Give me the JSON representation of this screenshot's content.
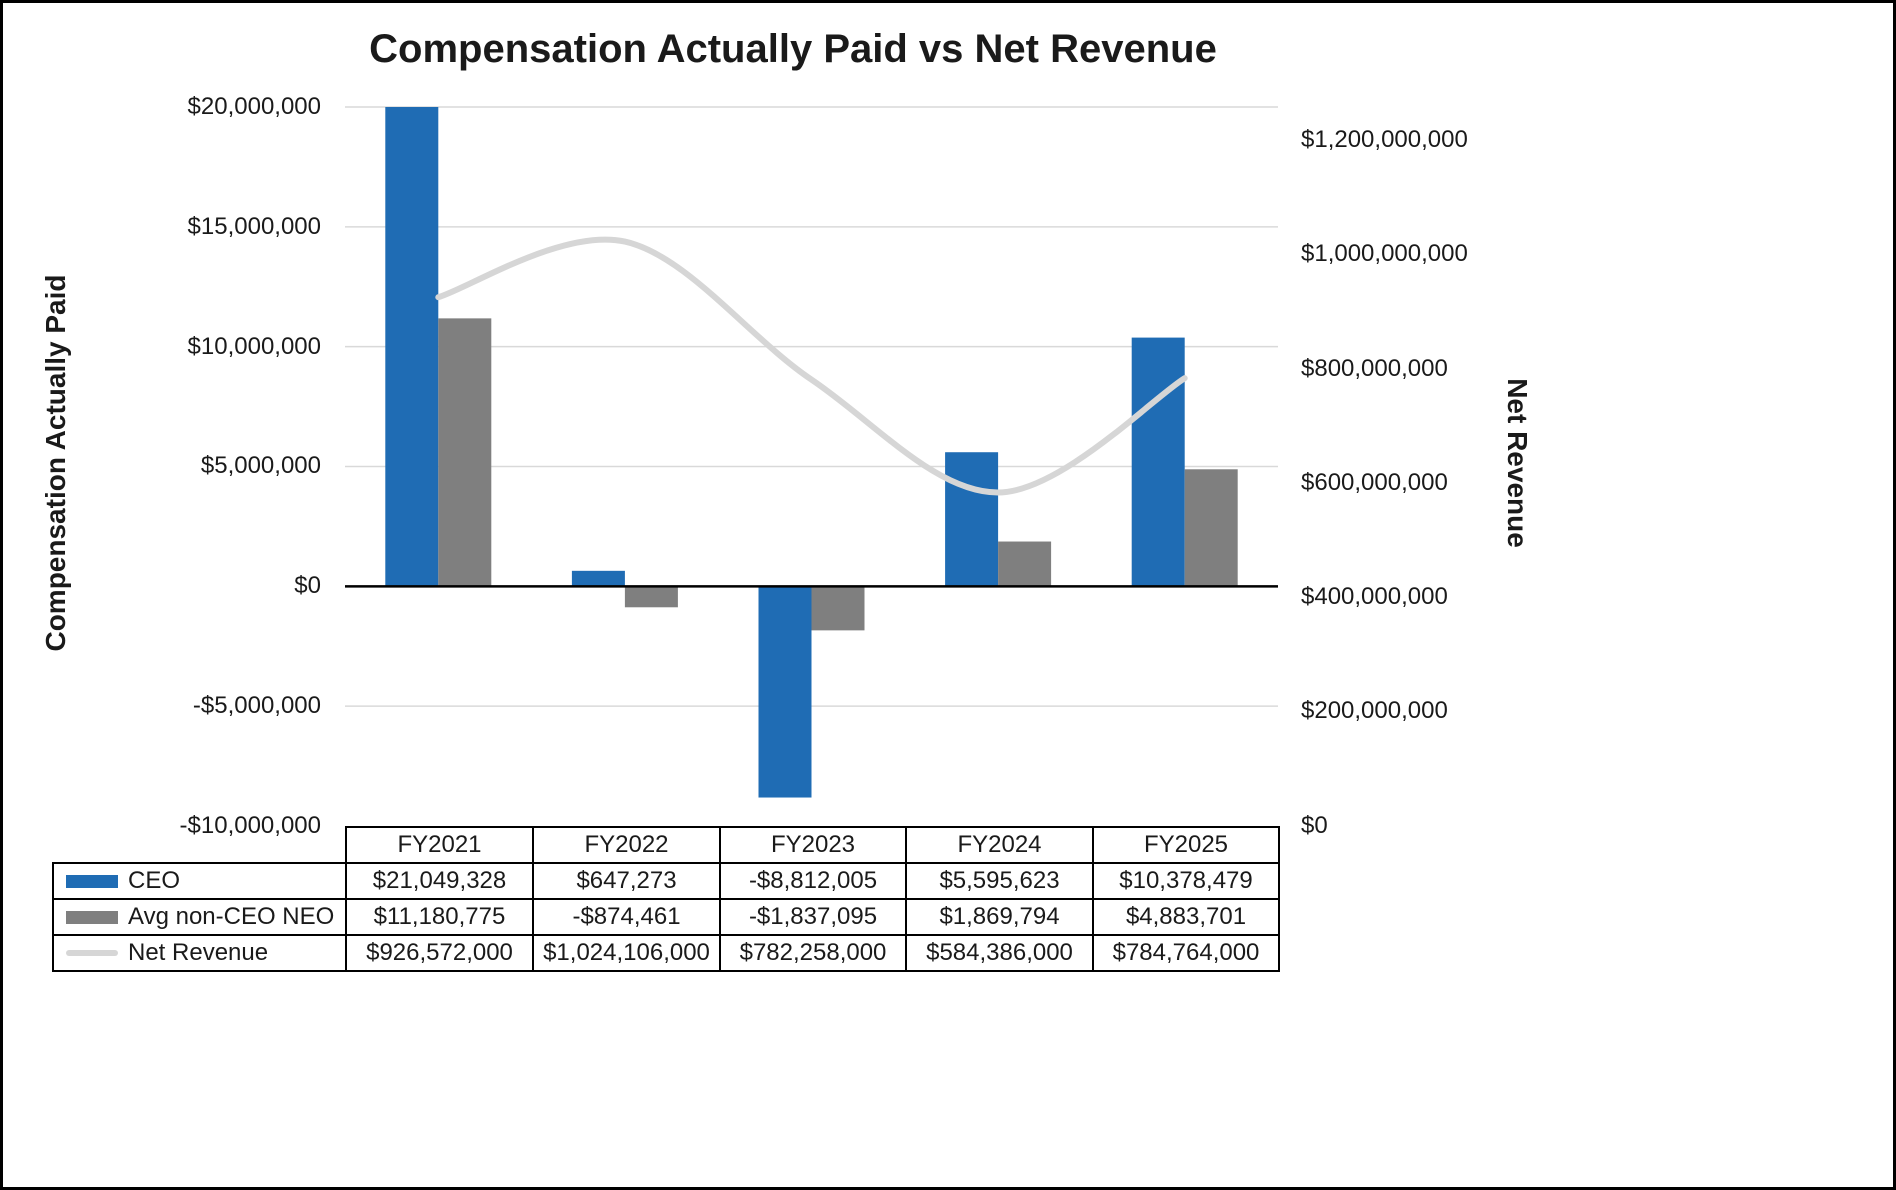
{
  "title": "Compensation Actually Paid vs Net Revenue",
  "left_axis": {
    "title": "Compensation Actually Paid",
    "ticks": [
      "$20,000,000",
      "$15,000,000",
      "$10,000,000",
      "$5,000,000",
      "$0",
      "-$5,000,000",
      "-$10,000,000"
    ]
  },
  "right_axis": {
    "title": "Net Revenue",
    "ticks": [
      "$1,200,000,000",
      "$1,000,000,000",
      "$800,000,000",
      "$600,000,000",
      "$400,000,000",
      "$200,000,000",
      "$0"
    ]
  },
  "table": {
    "columns": [
      "FY2021",
      "FY2022",
      "FY2023",
      "FY2024",
      "FY2025"
    ],
    "rows": [
      {
        "label": "CEO",
        "cells": [
          "$21,049,328",
          "$647,273",
          "-$8,812,005",
          "$5,595,623",
          "$10,378,479"
        ]
      },
      {
        "label": "Avg non-CEO NEO",
        "cells": [
          "$11,180,775",
          "-$874,461",
          "-$1,837,095",
          "$1,869,794",
          "$4,883,701"
        ]
      },
      {
        "label": "Net Revenue",
        "cells": [
          "$926,572,000",
          "$1,024,106,000",
          "$782,258,000",
          "$584,386,000",
          "$784,764,000"
        ]
      }
    ]
  },
  "colors": {
    "ceo_bar": "#1f6cb4",
    "neo_bar": "#7f7f7f",
    "revenue_line": "#d6d6d6",
    "gridline": "#d9d9d9",
    "axis_line": "#000000"
  },
  "chart_data": {
    "type": "bar",
    "subtype": "bar+line-combo",
    "title": "Compensation Actually Paid vs Net Revenue",
    "categories": [
      "FY2021",
      "FY2022",
      "FY2023",
      "FY2024",
      "FY2025"
    ],
    "series": [
      {
        "name": "CEO",
        "type": "bar",
        "axis": "left",
        "color": "#1f6cb4",
        "values": [
          21049328,
          647273,
          -8812005,
          5595623,
          10378479
        ]
      },
      {
        "name": "Avg non-CEO NEO",
        "type": "bar",
        "axis": "left",
        "color": "#7f7f7f",
        "values": [
          11180775,
          -874461,
          -1837095,
          1869794,
          4883701
        ]
      },
      {
        "name": "Net Revenue",
        "type": "line",
        "axis": "right",
        "color": "#d6d6d6",
        "smooth": true,
        "values": [
          926572000,
          1024106000,
          782258000,
          584386000,
          784764000
        ]
      }
    ],
    "left_axis_label": "Compensation Actually Paid",
    "right_axis_label": "Net Revenue",
    "left_ylim": [
      -10000000,
      20000000
    ],
    "right_ylim": [
      0,
      1260000000
    ],
    "left_tick_step": 5000000,
    "right_tick_step": 200000000,
    "grid": "horizontal",
    "legend_position": "table-bottom"
  }
}
